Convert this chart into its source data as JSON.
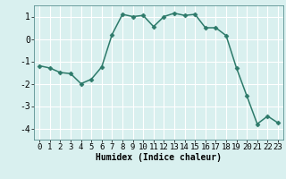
{
  "x": [
    0,
    1,
    2,
    3,
    4,
    5,
    6,
    7,
    8,
    9,
    10,
    11,
    12,
    13,
    14,
    15,
    16,
    17,
    18,
    19,
    20,
    21,
    22,
    23
  ],
  "y": [
    -1.2,
    -1.3,
    -1.5,
    -1.55,
    -2.0,
    -1.8,
    -1.25,
    0.2,
    1.1,
    1.0,
    1.05,
    0.55,
    1.0,
    1.15,
    1.05,
    1.1,
    0.5,
    0.5,
    0.15,
    -1.3,
    -2.55,
    -3.8,
    -3.45,
    -3.75
  ],
  "xlabel": "Humidex (Indice chaleur)",
  "line_color": "#2d7a6a",
  "marker": "D",
  "marker_size": 2.5,
  "bg_color": "#d9f0ef",
  "grid_color": "#ffffff",
  "ylim": [
    -4.5,
    1.5
  ],
  "xlim": [
    -0.5,
    23.5
  ],
  "yticks": [
    -4,
    -3,
    -2,
    -1,
    0,
    1
  ],
  "xticks": [
    0,
    1,
    2,
    3,
    4,
    5,
    6,
    7,
    8,
    9,
    10,
    11,
    12,
    13,
    14,
    15,
    16,
    17,
    18,
    19,
    20,
    21,
    22,
    23
  ],
  "xlabel_fontsize": 7,
  "tick_fontsize": 6.5,
  "linewidth": 1.1
}
